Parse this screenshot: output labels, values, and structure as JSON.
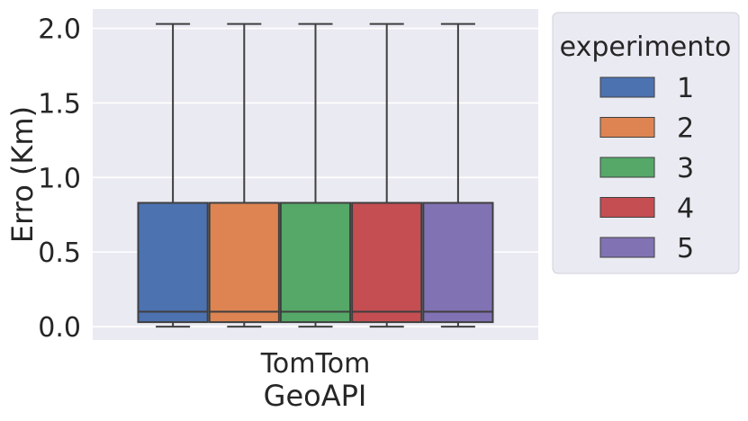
{
  "chart_data": {
    "type": "box",
    "title": "",
    "xlabel": "GeoAPI",
    "ylabel": "Erro (Km)",
    "categories": [
      "TomTom"
    ],
    "ylim": [
      -0.09,
      2.13
    ],
    "yticks": [
      "0.0",
      "0.5",
      "1.0",
      "1.5",
      "2.0"
    ],
    "grid": true,
    "legend": {
      "title": "experimento",
      "position": "outside-right"
    },
    "series": [
      {
        "name": "1",
        "color": "#4c72b0",
        "min": 0.0,
        "q1": 0.03,
        "median": 0.1,
        "q3": 0.83,
        "max": 2.03
      },
      {
        "name": "2",
        "color": "#dd8452",
        "min": 0.0,
        "q1": 0.03,
        "median": 0.1,
        "q3": 0.83,
        "max": 2.03
      },
      {
        "name": "3",
        "color": "#55a868",
        "min": 0.0,
        "q1": 0.03,
        "median": 0.1,
        "q3": 0.83,
        "max": 2.03
      },
      {
        "name": "4",
        "color": "#c44e52",
        "min": 0.0,
        "q1": 0.03,
        "median": 0.1,
        "q3": 0.83,
        "max": 2.03
      },
      {
        "name": "5",
        "color": "#8172b3",
        "min": 0.0,
        "q1": 0.03,
        "median": 0.1,
        "q3": 0.83,
        "max": 2.03
      }
    ]
  }
}
